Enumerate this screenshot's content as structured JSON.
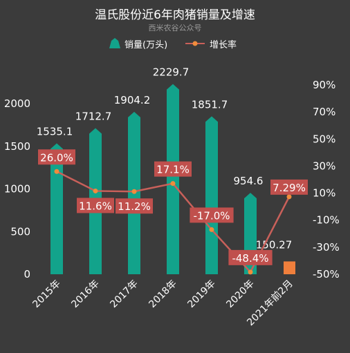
{
  "chart_data": {
    "type": "bar",
    "title": "温氏股份近6年肉猪销量及增速",
    "subtitle": "西米农谷公众号",
    "categories": [
      "2015年",
      "2016年",
      "2017年",
      "2018年",
      "2019年",
      "2020年",
      "2021年前2月"
    ],
    "series": [
      {
        "name": "销量(万头)",
        "type": "bar",
        "axis": "left",
        "values": [
          1535.1,
          1712.7,
          1904.2,
          2229.7,
          1851.7,
          954.6,
          150.27
        ],
        "labels": [
          "1535.1",
          "1712.7",
          "1904.2",
          "2229.7",
          "1851.7",
          "954.6",
          "150.27"
        ]
      },
      {
        "name": "增长率",
        "type": "line",
        "axis": "right",
        "values": [
          26.0,
          11.6,
          11.2,
          17.1,
          -17.0,
          -48.4,
          7.29
        ],
        "labels": [
          "26.0%",
          "11.6%",
          "11.2%",
          "17.1%",
          "-17.0%",
          "-48.4%",
          "7.29%"
        ]
      }
    ],
    "y_left": {
      "ylim": [
        0,
        2300
      ],
      "ticks": [
        0,
        500,
        1000,
        1500,
        2000
      ],
      "tick_labels": [
        "0",
        "500",
        "1000",
        "1500",
        "2000"
      ]
    },
    "y_right": {
      "ylim": [
        -50,
        90
      ],
      "ticks": [
        -50,
        -30,
        -10,
        10,
        30,
        50,
        70,
        90
      ],
      "tick_labels": [
        "-50%",
        "-30%",
        "-10%",
        "10%",
        "30%",
        "50%",
        "70%",
        "90%"
      ]
    },
    "legend": {
      "placement": "top-center"
    },
    "grid": false
  },
  "colors": {
    "background": "#3b3b3b",
    "bar": "#12a38b",
    "bar_last": "#f07f3c",
    "line": "#c9605a",
    "marker": "#f08c3c",
    "label_box": "#c0504d",
    "text": "#ffffff",
    "subtitle": "#9a9a9a"
  }
}
